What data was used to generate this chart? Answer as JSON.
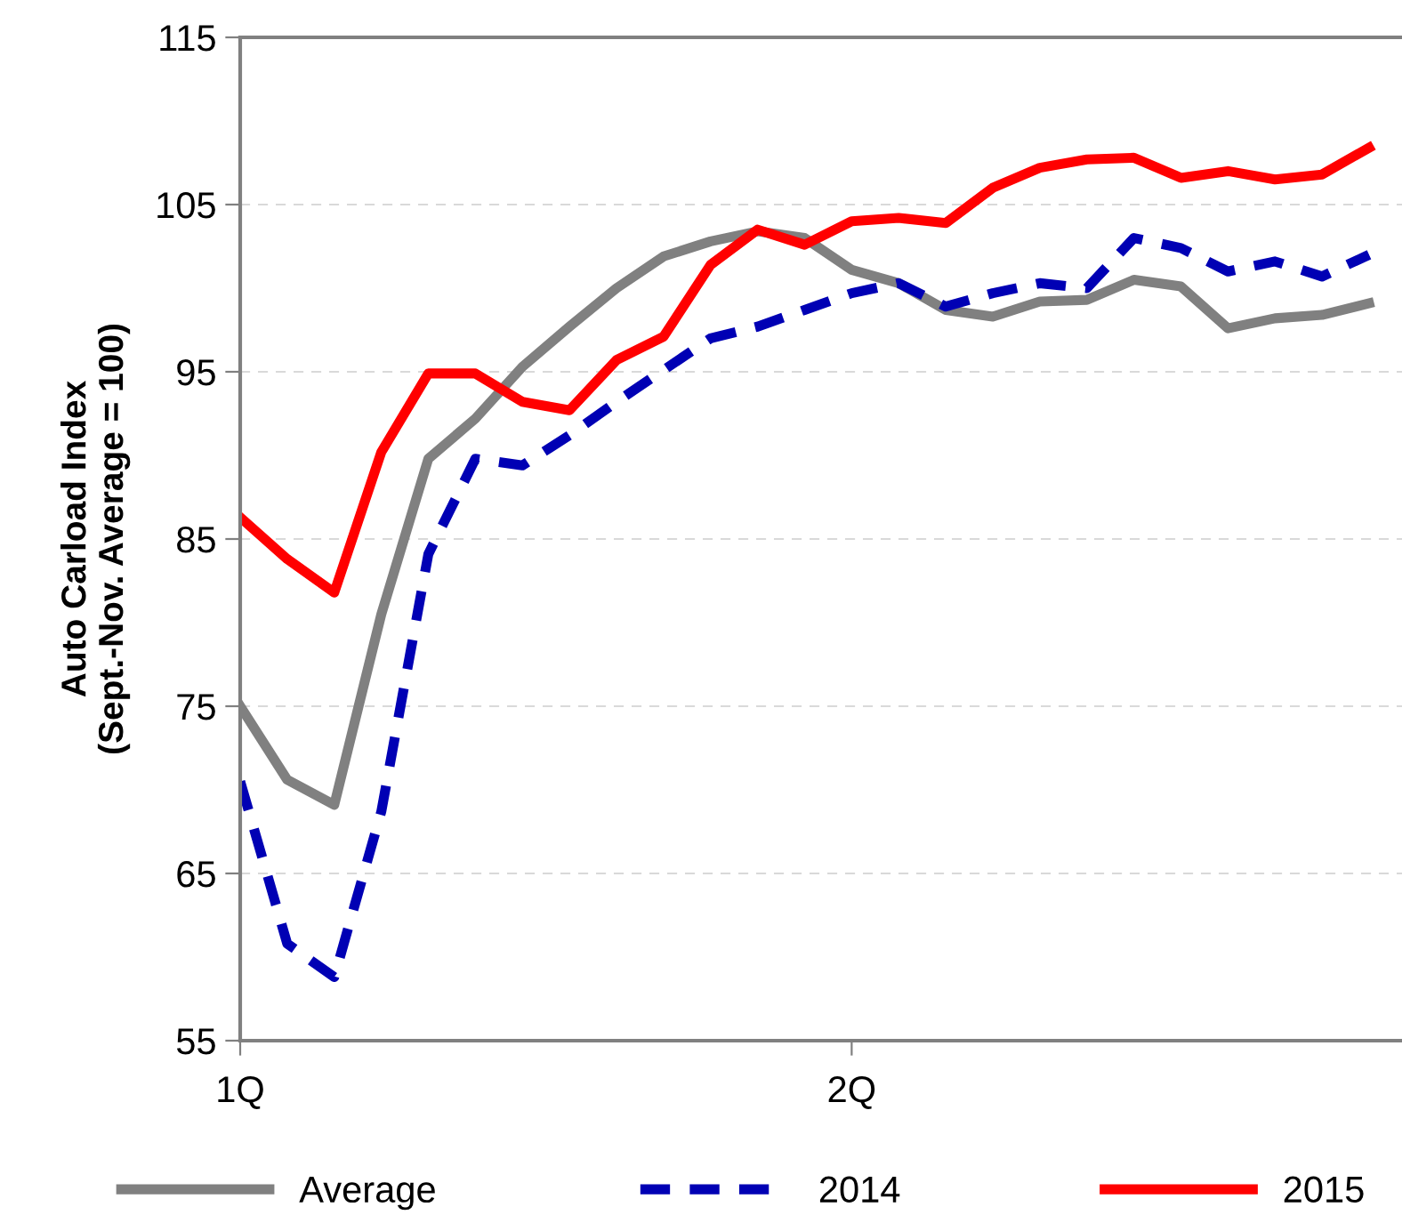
{
  "chart_data": {
    "type": "line",
    "ylabel": "Auto Carload Index\n(Sept.-Nov. Average = 100)",
    "categories": [
      "1Q",
      null,
      null,
      null,
      null,
      null,
      null,
      null,
      null,
      null,
      null,
      null,
      null,
      "2Q",
      null,
      null,
      null,
      null,
      null,
      null,
      null,
      null,
      null,
      null,
      null
    ],
    "ylim": [
      55,
      115
    ],
    "yticks": [
      55,
      65,
      75,
      85,
      95,
      105,
      115
    ],
    "grid": "y",
    "legend": "bottom",
    "series": [
      {
        "name": "Average",
        "color": "#808080",
        "line_style": "solid",
        "values": [
          75.0,
          70.6,
          69.1,
          80.5,
          89.8,
          92.2,
          95.3,
          97.7,
          100.0,
          101.9,
          102.8,
          103.4,
          103.0,
          101.1,
          100.3,
          98.7,
          98.3,
          99.2,
          99.3,
          100.5,
          100.1,
          97.6,
          98.2,
          98.4,
          99.1
        ]
      },
      {
        "name": "2014",
        "color": "#0000b4",
        "line_style": "dashed",
        "values": [
          70.5,
          60.8,
          58.8,
          68.7,
          84.1,
          89.8,
          89.4,
          91.2,
          93.2,
          95.1,
          97.0,
          97.7,
          98.7,
          99.7,
          100.3,
          98.9,
          99.7,
          100.3,
          100.0,
          103.0,
          102.4,
          101.0,
          101.6,
          100.7,
          102.0
        ]
      },
      {
        "name": "2015",
        "color": "#ff0000",
        "line_style": "solid",
        "values": [
          86.3,
          83.8,
          81.8,
          90.2,
          94.9,
          94.9,
          93.2,
          92.7,
          95.7,
          97.1,
          101.4,
          103.5,
          102.6,
          104.0,
          104.2,
          103.9,
          106.0,
          107.2,
          107.7,
          107.8,
          106.6,
          107.0,
          106.5,
          106.8,
          108.4
        ]
      }
    ]
  }
}
